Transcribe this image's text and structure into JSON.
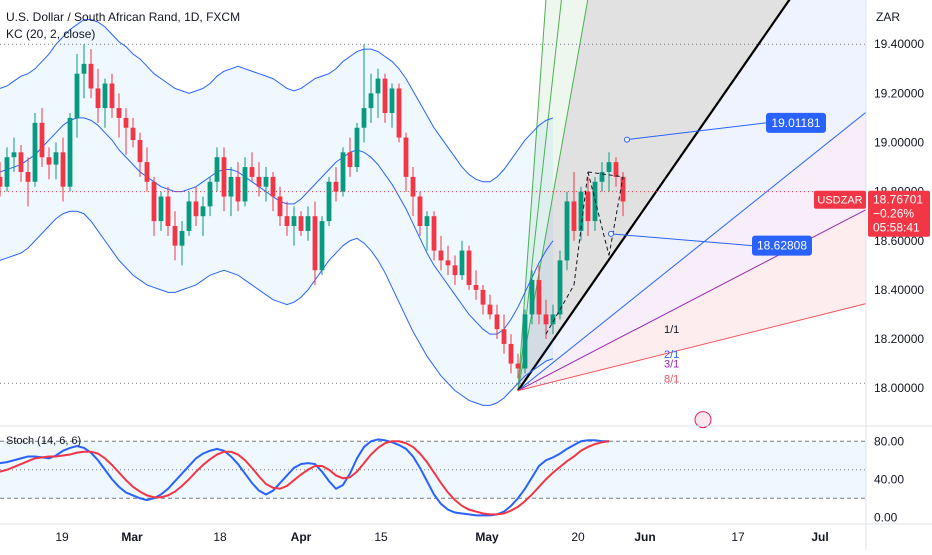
{
  "header": {
    "title": "U.S. Dollar / South African Rand, 1D, FXCM",
    "indicator": "KC (20, 2, close)",
    "currency": "ZAR"
  },
  "stoch_label": "Stoch (14, 6, 6)",
  "price_tag": {
    "symbol": "USDZAR",
    "price": "18.76701",
    "change": "−0.26%",
    "countdown": "05:58:41",
    "color": "#f23645"
  },
  "callouts": [
    {
      "value": "19.01181",
      "price": 19.01181
    },
    {
      "value": "18.62808",
      "price": 18.62808
    }
  ],
  "fan_labels": [
    "1/1",
    "2/1",
    "3/1",
    "8/1"
  ],
  "colors": {
    "up": "#089981",
    "down": "#f23645",
    "kc_line": "#2962ff",
    "stoch_k": "#2962ff",
    "stoch_d": "#f23645",
    "label_bg": "#2962ff"
  },
  "chart_data": [
    {
      "type": "candlestick",
      "title": "U.S. Dollar / South African Rand, 1D, FXCM",
      "y_ticks": [
        "19.40000",
        "19.20000",
        "19.00000",
        "18.80000",
        "18.60000",
        "18.40000",
        "18.20000",
        "18.00000"
      ],
      "x_ticks": [
        "19",
        "Mar",
        "18",
        "Apr",
        "15",
        "May",
        "20",
        "Jun",
        "17",
        "Jul"
      ],
      "ylim": [
        17.85,
        19.58
      ],
      "horizontal_levels": [
        19.4,
        18.8,
        18.02
      ],
      "candles": [
        [
          18.86,
          18.92,
          18.78,
          18.82
        ],
        [
          18.82,
          18.98,
          18.8,
          18.94
        ],
        [
          18.94,
          19.02,
          18.88,
          18.96
        ],
        [
          18.96,
          18.99,
          18.84,
          18.88
        ],
        [
          18.88,
          18.94,
          18.74,
          18.84
        ],
        [
          18.84,
          19.12,
          18.82,
          19.08
        ],
        [
          19.08,
          19.14,
          18.9,
          18.94
        ],
        [
          18.94,
          18.98,
          18.85,
          18.91
        ],
        [
          18.91,
          19.0,
          18.85,
          18.96
        ],
        [
          18.96,
          19.02,
          18.76,
          18.82
        ],
        [
          18.82,
          19.12,
          18.8,
          19.1
        ],
        [
          19.1,
          19.36,
          19.02,
          19.28
        ],
        [
          19.28,
          19.4,
          19.18,
          19.32
        ],
        [
          19.32,
          19.38,
          19.18,
          19.22
        ],
        [
          19.22,
          19.3,
          19.08,
          19.14
        ],
        [
          19.14,
          19.26,
          19.06,
          19.24
        ],
        [
          19.24,
          19.28,
          19.1,
          19.14
        ],
        [
          19.14,
          19.2,
          19.02,
          19.1
        ],
        [
          19.1,
          19.14,
          18.95,
          19.06
        ],
        [
          19.06,
          19.1,
          18.98,
          19.01
        ],
        [
          19.01,
          19.04,
          18.86,
          18.92
        ],
        [
          18.92,
          18.98,
          18.8,
          18.84
        ],
        [
          18.84,
          18.86,
          18.62,
          18.68
        ],
        [
          18.68,
          18.8,
          18.64,
          18.78
        ],
        [
          18.78,
          18.82,
          18.62,
          18.66
        ],
        [
          18.66,
          18.72,
          18.52,
          18.58
        ],
        [
          18.58,
          18.68,
          18.5,
          18.64
        ],
        [
          18.64,
          18.8,
          18.62,
          18.76
        ],
        [
          18.76,
          18.82,
          18.66,
          18.7
        ],
        [
          18.7,
          18.78,
          18.62,
          18.74
        ],
        [
          18.74,
          18.86,
          18.7,
          18.84
        ],
        [
          18.84,
          18.98,
          18.8,
          18.94
        ],
        [
          18.94,
          18.98,
          18.72,
          18.78
        ],
        [
          18.78,
          18.9,
          18.7,
          18.86
        ],
        [
          18.86,
          18.92,
          18.72,
          18.76
        ],
        [
          18.76,
          18.94,
          18.74,
          18.9
        ],
        [
          18.9,
          18.96,
          18.84,
          18.86
        ],
        [
          18.86,
          18.92,
          18.78,
          18.82
        ],
        [
          18.82,
          18.9,
          18.76,
          18.86
        ],
        [
          18.86,
          18.88,
          18.72,
          18.78
        ],
        [
          18.78,
          18.82,
          18.66,
          18.7
        ],
        [
          18.7,
          18.76,
          18.62,
          18.66
        ],
        [
          18.66,
          18.74,
          18.58,
          18.7
        ],
        [
          18.7,
          18.72,
          18.62,
          18.64
        ],
        [
          18.64,
          18.74,
          18.6,
          18.7
        ],
        [
          18.7,
          18.76,
          18.42,
          18.48
        ],
        [
          18.48,
          18.7,
          18.46,
          18.68
        ],
        [
          18.68,
          18.86,
          18.66,
          18.84
        ],
        [
          18.84,
          18.9,
          18.76,
          18.8
        ],
        [
          18.8,
          18.98,
          18.78,
          18.96
        ],
        [
          18.96,
          19.02,
          18.86,
          18.9
        ],
        [
          18.9,
          19.08,
          18.88,
          19.06
        ],
        [
          19.06,
          19.4,
          19.0,
          19.14
        ],
        [
          19.14,
          19.28,
          19.08,
          19.2
        ],
        [
          19.2,
          19.3,
          19.1,
          19.26
        ],
        [
          19.26,
          19.28,
          19.08,
          19.12
        ],
        [
          19.12,
          19.24,
          19.06,
          19.22
        ],
        [
          19.22,
          19.24,
          19.0,
          19.02
        ],
        [
          19.02,
          19.04,
          18.8,
          18.86
        ],
        [
          18.86,
          18.9,
          18.7,
          18.78
        ],
        [
          18.78,
          18.8,
          18.62,
          18.66
        ],
        [
          18.66,
          18.72,
          18.56,
          18.7
        ],
        [
          18.7,
          18.72,
          18.52,
          18.56
        ],
        [
          18.56,
          18.62,
          18.48,
          18.52
        ],
        [
          18.52,
          18.58,
          18.46,
          18.5
        ],
        [
          18.5,
          18.54,
          18.42,
          18.46
        ],
        [
          18.46,
          18.6,
          18.44,
          18.56
        ],
        [
          18.56,
          18.58,
          18.4,
          18.42
        ],
        [
          18.42,
          18.48,
          18.36,
          18.4
        ],
        [
          18.4,
          18.42,
          18.3,
          18.34
        ],
        [
          18.34,
          18.38,
          18.28,
          18.3
        ],
        [
          18.3,
          18.34,
          18.2,
          18.24
        ],
        [
          18.24,
          18.3,
          18.14,
          18.18
        ],
        [
          18.18,
          18.22,
          18.06,
          18.1
        ],
        [
          18.1,
          18.14,
          18.04,
          18.08
        ],
        [
          18.08,
          18.32,
          18.06,
          18.3
        ],
        [
          18.3,
          18.48,
          18.26,
          18.44
        ],
        [
          18.44,
          18.5,
          18.26,
          18.3
        ],
        [
          18.3,
          18.36,
          18.2,
          18.26
        ],
        [
          18.26,
          18.34,
          18.22,
          18.3
        ],
        [
          18.3,
          18.56,
          18.28,
          18.52
        ],
        [
          18.52,
          18.8,
          18.48,
          18.76
        ],
        [
          18.76,
          18.88,
          18.6,
          18.64
        ],
        [
          18.64,
          18.82,
          18.6,
          18.8
        ],
        [
          18.8,
          18.86,
          18.62,
          18.68
        ],
        [
          18.68,
          18.86,
          18.64,
          18.84
        ],
        [
          18.84,
          18.92,
          18.8,
          18.88
        ],
        [
          18.88,
          18.96,
          18.8,
          18.92
        ],
        [
          18.92,
          18.94,
          18.82,
          18.86
        ],
        [
          18.86,
          18.88,
          18.7,
          18.76
        ]
      ],
      "kc_upper": [
        19.22,
        19.23,
        19.25,
        19.27,
        19.28,
        19.3,
        19.33,
        19.36,
        19.4,
        19.43,
        19.46,
        19.48,
        19.5,
        19.5,
        19.49,
        19.47,
        19.44,
        19.41,
        19.39,
        19.36,
        19.34,
        19.31,
        19.28,
        19.26,
        19.24,
        19.22,
        19.21,
        19.2,
        19.21,
        19.22,
        19.24,
        19.27,
        19.29,
        19.3,
        19.31,
        19.3,
        19.29,
        19.28,
        19.27,
        19.26,
        19.24,
        19.22,
        19.21,
        19.22,
        19.24,
        19.26,
        19.27,
        19.28,
        19.3,
        19.33,
        19.35,
        19.37,
        19.38,
        19.38,
        19.37,
        19.35,
        19.33,
        19.3,
        19.26,
        19.21,
        19.16,
        19.11,
        19.06,
        19.02,
        18.98,
        18.94,
        18.9,
        18.87,
        18.85,
        18.84,
        18.84,
        18.86,
        18.89,
        18.93,
        18.97,
        19.01,
        19.04,
        19.07,
        19.09,
        19.1
      ],
      "kc_middle": [
        18.88,
        18.89,
        18.9,
        18.91,
        18.93,
        18.95,
        18.98,
        19.01,
        19.04,
        19.07,
        19.09,
        19.1,
        19.1,
        19.09,
        19.07,
        19.04,
        19.01,
        18.97,
        18.94,
        18.91,
        18.88,
        18.86,
        18.84,
        18.82,
        18.81,
        18.8,
        18.8,
        18.81,
        18.82,
        18.84,
        18.86,
        18.88,
        18.89,
        18.89,
        18.88,
        18.86,
        18.84,
        18.82,
        18.8,
        18.78,
        18.76,
        18.75,
        18.75,
        18.77,
        18.8,
        18.83,
        18.86,
        18.89,
        18.92,
        18.94,
        18.96,
        18.97,
        18.96,
        18.94,
        18.91,
        18.87,
        18.83,
        18.78,
        18.73,
        18.67,
        18.61,
        18.55,
        18.5,
        18.46,
        18.42,
        18.38,
        18.34,
        18.3,
        18.27,
        18.24,
        18.22,
        18.22,
        18.24,
        18.28,
        18.33,
        18.39,
        18.45,
        18.51,
        18.56,
        18.6
      ],
      "kc_lower": [
        18.52,
        18.53,
        18.54,
        18.55,
        18.57,
        18.6,
        18.63,
        18.66,
        18.69,
        18.71,
        18.72,
        18.72,
        18.71,
        18.68,
        18.64,
        18.6,
        18.56,
        18.52,
        18.49,
        18.46,
        18.44,
        18.42,
        18.41,
        18.4,
        18.39,
        18.39,
        18.4,
        18.41,
        18.42,
        18.44,
        18.46,
        18.47,
        18.48,
        18.47,
        18.46,
        18.44,
        18.42,
        18.4,
        18.38,
        18.36,
        18.35,
        18.34,
        18.35,
        18.37,
        18.4,
        18.44,
        18.48,
        18.52,
        18.55,
        18.58,
        18.6,
        18.61,
        18.59,
        18.56,
        18.52,
        18.47,
        18.41,
        18.35,
        18.29,
        18.23,
        18.18,
        18.13,
        18.09,
        18.05,
        18.02,
        17.99,
        17.97,
        17.95,
        17.94,
        17.93,
        17.93,
        17.94,
        17.96,
        17.99,
        18.02,
        18.05,
        18.07,
        18.09,
        18.11,
        18.12
      ]
    },
    {
      "type": "line",
      "title": "Stoch (14, 6, 6)",
      "y_ticks": [
        "80.00",
        "40.00",
        "0.00"
      ],
      "ylim": [
        -5,
        95
      ],
      "bands": [
        80,
        50,
        20
      ],
      "series": [
        {
          "name": "",
          "values": [
            57,
            58,
            60,
            62,
            64,
            64,
            63,
            62,
            65,
            70,
            73,
            75,
            73,
            68,
            60,
            50,
            40,
            32,
            26,
            23,
            20,
            18,
            20,
            24,
            30,
            38,
            46,
            54,
            62,
            67,
            70,
            72,
            70,
            64,
            56,
            46,
            36,
            28,
            24,
            28,
            36,
            44,
            52,
            56,
            57,
            56,
            48,
            38,
            30,
            34,
            46,
            62,
            74,
            80,
            82,
            81,
            79,
            76,
            72,
            64,
            52,
            38,
            24,
            14,
            8,
            5,
            4,
            3,
            2,
            2,
            2,
            3,
            6,
            12,
            20,
            30,
            42,
            54,
            60,
            63,
            67,
            72,
            76,
            80,
            81,
            81,
            80,
            80
          ]
        },
        {
          "name": "",
          "values": [
            48,
            50,
            53,
            56,
            59,
            62,
            63,
            64,
            64,
            65,
            66,
            68,
            69,
            69,
            67,
            62,
            55,
            47,
            39,
            32,
            27,
            23,
            21,
            21,
            23,
            27,
            33,
            40,
            48,
            55,
            61,
            66,
            69,
            69,
            66,
            60,
            52,
            43,
            35,
            31,
            30,
            33,
            39,
            45,
            50,
            54,
            54,
            50,
            44,
            41,
            42,
            48,
            57,
            66,
            73,
            78,
            80,
            80,
            78,
            74,
            67,
            58,
            47,
            36,
            26,
            18,
            12,
            8,
            6,
            4,
            3,
            3,
            4,
            7,
            11,
            17,
            24,
            32,
            40,
            47,
            53,
            59,
            64,
            70,
            74,
            77,
            79,
            80
          ]
        }
      ]
    }
  ]
}
